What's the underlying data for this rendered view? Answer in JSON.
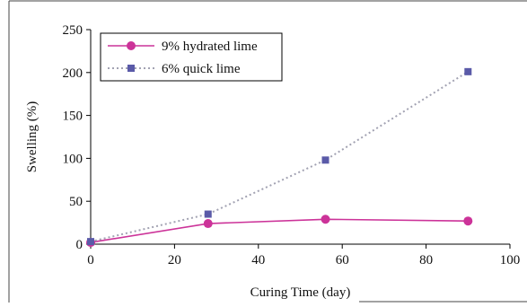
{
  "chart_data": {
    "type": "line",
    "xlabel": "Curing Time (day)",
    "ylabel": "Swelling (%)",
    "xlim": [
      0,
      100
    ],
    "ylim": [
      0,
      250
    ],
    "xticks": [
      0,
      20,
      40,
      60,
      80,
      100
    ],
    "yticks": [
      0,
      50,
      100,
      150,
      200,
      250
    ],
    "grid": false,
    "legend_position": "top-left",
    "series": [
      {
        "name": "9% hydrated lime",
        "color": "#cc3399",
        "marker": "circle",
        "line_style": "solid",
        "x": [
          0,
          28,
          56,
          90
        ],
        "y": [
          2,
          24,
          29,
          27
        ]
      },
      {
        "name": "6% quick lime",
        "color": "#5a5aa8",
        "line_color": "#a2a2b2",
        "marker": "square",
        "line_style": "dotted",
        "x": [
          0,
          28,
          56,
          90
        ],
        "y": [
          3,
          35,
          98,
          201
        ]
      }
    ]
  }
}
